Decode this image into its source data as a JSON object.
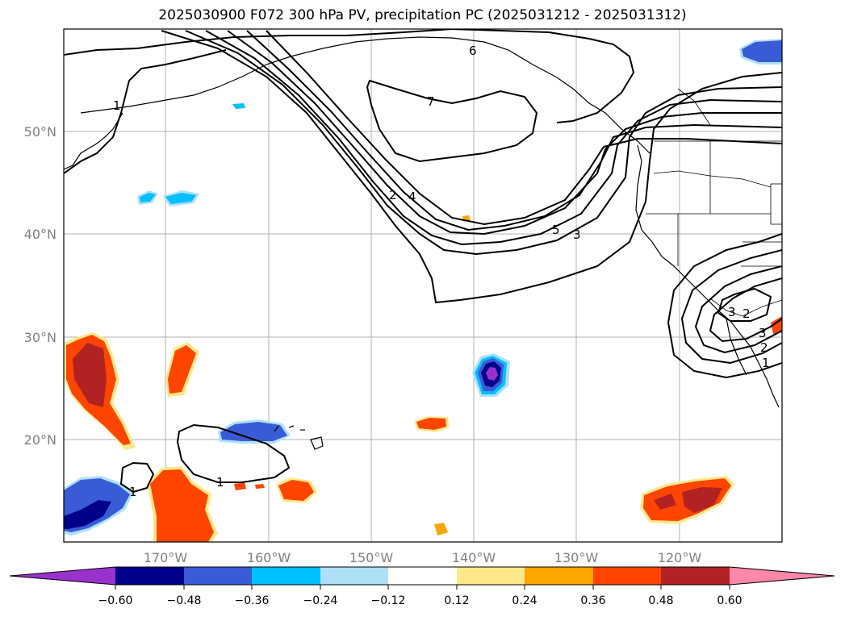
{
  "title": "2025030900 F072 300 hPa PV, precipitation PC (2025031212 - 2025031312)",
  "colors": {
    "neg_beyond": "#9932cc",
    "neg_060": "#00008b",
    "neg_048": "#3a5bd6",
    "neg_036": "#00bfff",
    "neg_024": "#aee0f8",
    "zero": "#ffffff",
    "pos_012": "#ffe88a",
    "pos_024": "#ffa500",
    "pos_036": "#ff4500",
    "pos_048": "#b22222",
    "pos_beyond": "#ff88aa",
    "contour": "#000000",
    "grid": "#b0b0b0"
  },
  "axes": {
    "lat_labels": [
      "50°N",
      "40°N",
      "30°N",
      "20°N"
    ],
    "lon_labels": [
      "170°W",
      "160°W",
      "150°W",
      "140°W",
      "130°W",
      "120°W"
    ]
  },
  "colorbar": {
    "ticks": [
      "−0.60",
      "−0.48",
      "−0.36",
      "−0.24",
      "−0.12",
      "0.12",
      "0.24",
      "0.36",
      "0.48",
      "0.60"
    ]
  },
  "contour_labels": [
    "6",
    "7",
    "2",
    "4",
    "5",
    "3",
    "3",
    "2",
    "3",
    "2",
    "1",
    "1",
    "1",
    "1"
  ]
}
